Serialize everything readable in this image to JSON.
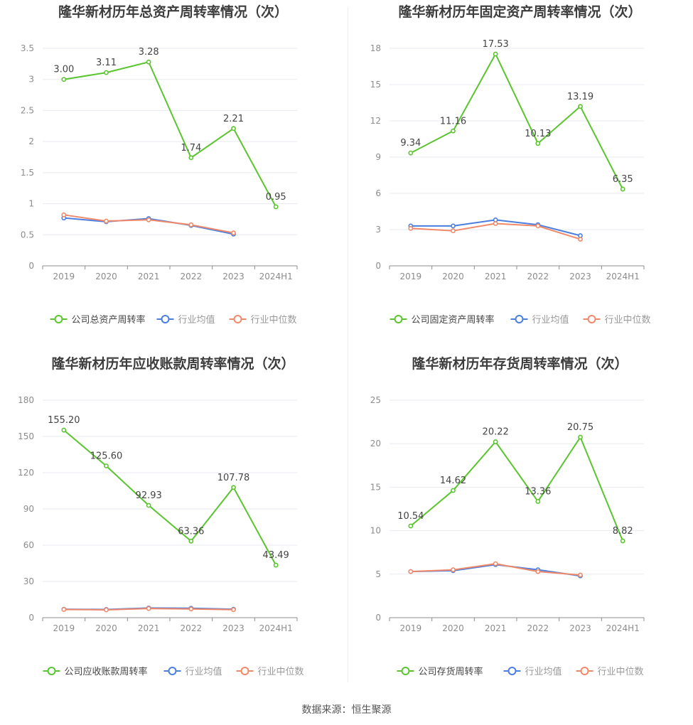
{
  "footer": {
    "source": "数据来源：恒生聚源"
  },
  "colors": {
    "company": "#5ac52e",
    "avg": "#4a7ee0",
    "median": "#f0896a",
    "grid": "#e6e9f0",
    "axis": "#8c8c8c",
    "text": "#555555"
  },
  "chart_data": [
    {
      "type": "line",
      "title": "隆华新材历年总资产周转率情况（次）",
      "categories": [
        "2019",
        "2020",
        "2021",
        "2022",
        "2023",
        "2024H1"
      ],
      "yticks": [
        "0",
        "0.5",
        "1",
        "1.5",
        "2",
        "2.5",
        "3",
        "3.5"
      ],
      "ylim": [
        0,
        3.5
      ],
      "grid": true,
      "legend_position": "bottom",
      "series": [
        {
          "name": "公司总资产周转率",
          "values": [
            3.0,
            3.11,
            3.28,
            1.74,
            2.21,
            0.95
          ],
          "labels": [
            "3.00",
            "3.11",
            "3.28",
            "1.74",
            "2.21",
            "0.95"
          ]
        },
        {
          "name": "行业均值",
          "values": [
            0.77,
            0.71,
            0.76,
            0.65,
            0.51,
            null
          ]
        },
        {
          "name": "行业中位数",
          "values": [
            0.82,
            0.72,
            0.74,
            0.66,
            0.53,
            null
          ]
        }
      ]
    },
    {
      "type": "line",
      "title": "隆华新材历年固定资产周转率情况（次）",
      "categories": [
        "2019",
        "2020",
        "2021",
        "2022",
        "2023",
        "2024H1"
      ],
      "yticks": [
        "0",
        "3",
        "6",
        "9",
        "12",
        "15",
        "18"
      ],
      "ylim": [
        0,
        18
      ],
      "grid": true,
      "legend_position": "bottom",
      "series": [
        {
          "name": "公司固定资产周转率",
          "values": [
            9.34,
            11.16,
            17.53,
            10.13,
            13.19,
            6.35
          ],
          "labels": [
            "9.34",
            "11.16",
            "17.53",
            "10.13",
            "13.19",
            "6.35"
          ]
        },
        {
          "name": "行业均值",
          "values": [
            3.3,
            3.3,
            3.8,
            3.4,
            2.5,
            null
          ]
        },
        {
          "name": "行业中位数",
          "values": [
            3.1,
            2.9,
            3.5,
            3.3,
            2.2,
            null
          ]
        }
      ]
    },
    {
      "type": "line",
      "title": "隆华新材历年应收账款周转率情况（次）",
      "categories": [
        "2019",
        "2020",
        "2021",
        "2022",
        "2023",
        "2024H1"
      ],
      "yticks": [
        "0",
        "30",
        "60",
        "90",
        "120",
        "150",
        "180"
      ],
      "ylim": [
        0,
        180
      ],
      "grid": true,
      "legend_position": "bottom",
      "series": [
        {
          "name": "公司应收账款周转率",
          "values": [
            155.2,
            125.6,
            92.93,
            63.36,
            107.78,
            43.49
          ],
          "labels": [
            "155.20",
            "125.60",
            "92.93",
            "63.36",
            "107.78",
            "43.49"
          ]
        },
        {
          "name": "行业均值",
          "values": [
            7.0,
            6.8,
            8.0,
            7.8,
            7.0,
            null
          ]
        },
        {
          "name": "行业中位数",
          "values": [
            6.8,
            6.5,
            7.6,
            7.2,
            6.6,
            null
          ]
        }
      ]
    },
    {
      "type": "line",
      "title": "隆华新材历年存货周转率情况（次）",
      "categories": [
        "2019",
        "2020",
        "2021",
        "2022",
        "2023",
        "2024H1"
      ],
      "yticks": [
        "0",
        "5",
        "10",
        "15",
        "20",
        "25"
      ],
      "ylim": [
        0,
        25
      ],
      "grid": true,
      "legend_position": "bottom",
      "series": [
        {
          "name": "公司存货周转率",
          "values": [
            10.54,
            14.62,
            20.22,
            13.36,
            20.75,
            8.82
          ],
          "labels": [
            "10.54",
            "14.62",
            "20.22",
            "13.36",
            "20.75",
            "8.82"
          ]
        },
        {
          "name": "行业均值",
          "values": [
            5.3,
            5.4,
            6.1,
            5.5,
            4.8,
            null
          ]
        },
        {
          "name": "行业中位数",
          "values": [
            5.3,
            5.5,
            6.2,
            5.3,
            4.9,
            null
          ]
        }
      ]
    }
  ]
}
